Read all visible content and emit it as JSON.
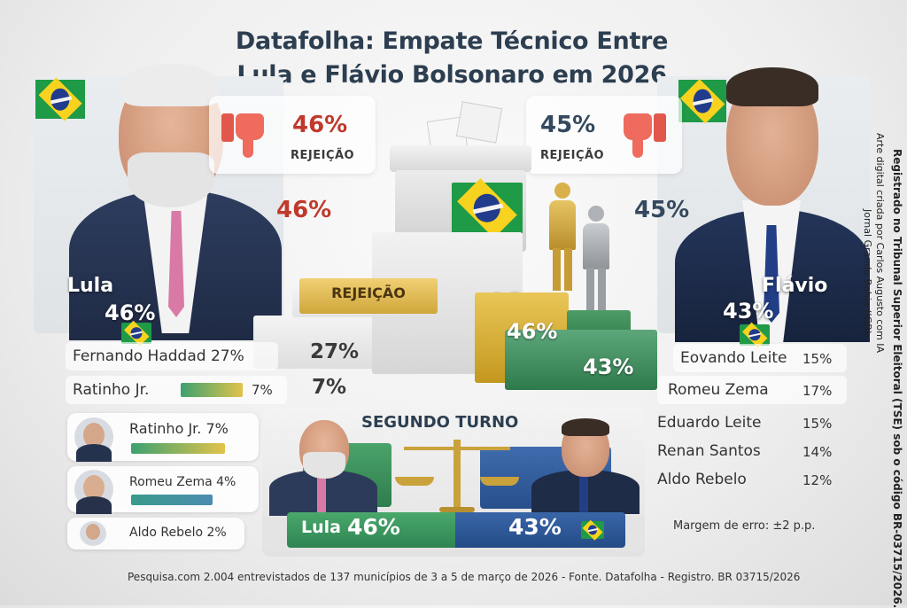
{
  "title_line1": "Datafolha: Empate Técnico Entre",
  "title_line2": "Lula e Flávio Bolsonaro em 2026",
  "left": {
    "name": "Lula",
    "pct": "46%",
    "rejection_pct": "46%",
    "rejection_label": "REJEIÇÃO",
    "pct_mid": "46%"
  },
  "right": {
    "name": "Flávio",
    "pct": "43%",
    "rejection_pct": "45%",
    "rejection_label": "REJEIÇÃO",
    "pct_mid": "45%"
  },
  "center": {
    "rejection_block": "REJEIÇÃO",
    "faded_num": "46",
    "step_green": "46%",
    "step_low": "43%"
  },
  "left_list": [
    {
      "label": "Fernando Haddad 27%",
      "value": "27%"
    },
    {
      "label": "Ratinho Jr.",
      "small": "7%",
      "value": "7%"
    }
  ],
  "cards": [
    {
      "label": "Ratinho Jr. 7%"
    },
    {
      "label": "Romeu Zema 4%"
    },
    {
      "label": "Aldo Rebelo 2%"
    }
  ],
  "right_list": [
    {
      "name": "Eovando Leite",
      "value": "15%"
    },
    {
      "name": "Romeu Zema",
      "value": "17%"
    },
    {
      "name": "Eduardo Leite",
      "value": "15%"
    },
    {
      "name": "Renan Santos",
      "value": "14%"
    },
    {
      "name": "Aldo Rebelo",
      "value": "12%"
    }
  ],
  "second_round": {
    "label": "SEGUNDO TURNO",
    "left_name": "Lula",
    "left_pct": "46%",
    "right_pct": "43%"
  },
  "margin": "Margem de erro: ±2 p.p.",
  "footer": "Pesquisa.com 2.004 entrevistados de 137 municípios de 3 a 5 de março de 2026 - Fonte. Datafolha - Registro. BR 03715/2026",
  "vertical_credit_1": "Arte digital criada por Carlos Augusto com IA",
  "vertical_credit_2": "Jornal Grande Bahia (JGB)",
  "vertical_credit_3": "Registrado no Tribunal Superior Eleitoral (TSE) sob o código BR-03715/2026.",
  "colors": {
    "red": "#c0392b",
    "green": "#2e8552",
    "blue": "#234b87",
    "gold": "#cfa63b"
  }
}
